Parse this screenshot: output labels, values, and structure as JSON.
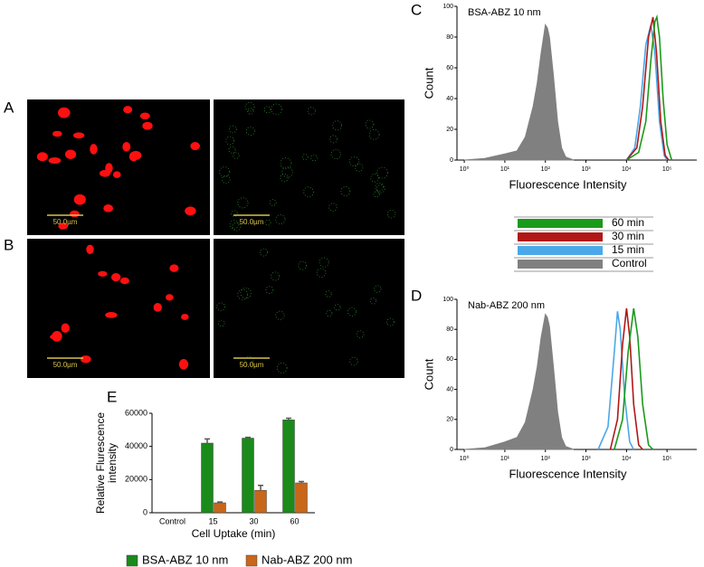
{
  "panel_labels": [
    "A",
    "B",
    "C",
    "D",
    "E"
  ],
  "images": [
    {
      "scale_bar": "50.0µm"
    },
    {
      "scale_bar": "50.0µm"
    },
    {
      "scale_bar": "50.0µm"
    },
    {
      "scale_bar": "50.0µm"
    }
  ],
  "chart_data": [
    {
      "type": "line",
      "annotation": "BSA-ABZ 10 nm",
      "xlabel": "Fluorescence Intensity",
      "ylabel": "Count",
      "xscale": "log",
      "xlim": [
        0.66,
        540000
      ],
      "ylim": [
        0,
        100
      ],
      "xticks": [
        {
          "value": 1,
          "label": "10⁰"
        },
        {
          "value": 10,
          "label": "10¹"
        },
        {
          "value": 100,
          "label": "10²"
        },
        {
          "value": 1000,
          "label": "10³"
        },
        {
          "value": 10000,
          "label": "10⁴"
        },
        {
          "value": 100000,
          "label": "10⁵"
        }
      ],
      "yticks": [
        0,
        20,
        40,
        60,
        80,
        100
      ],
      "series": [
        {
          "name": "60 min",
          "color": "#1a9a1a",
          "x": [
            10000,
            20000,
            30000,
            40000,
            50000,
            56000,
            65000,
            80000,
            100000,
            130000
          ],
          "values": [
            0,
            5,
            25,
            65,
            90,
            93,
            80,
            40,
            10,
            0
          ]
        },
        {
          "name": "30 min",
          "color": "#b01818",
          "x": [
            10000,
            18000,
            25000,
            35000,
            45000,
            55000,
            70000,
            90000,
            110000
          ],
          "values": [
            0,
            8,
            35,
            80,
            93,
            70,
            25,
            3,
            0
          ]
        },
        {
          "name": "15 min",
          "color": "#4aa8e8",
          "x": [
            10000,
            16000,
            22000,
            30000,
            40000,
            50000,
            65000,
            85000,
            100000
          ],
          "values": [
            0,
            8,
            35,
            75,
            88,
            70,
            25,
            3,
            0
          ]
        },
        {
          "name": "Control",
          "color": "#808080",
          "filled": true,
          "x": [
            1,
            3.16,
            10,
            20,
            32,
            50,
            63,
            79,
            100,
            112,
            126,
            158,
            200,
            251,
            316,
            500
          ],
          "values": [
            0,
            1,
            4,
            6,
            15,
            35,
            50,
            70,
            88,
            86,
            80,
            55,
            25,
            8,
            2,
            0
          ]
        }
      ]
    },
    {
      "type": "line",
      "annotation": "Nab-ABZ 200 nm",
      "xlabel": "Fluorescence Intensity",
      "ylabel": "Count",
      "xscale": "log",
      "xlim": [
        0.66,
        540000
      ],
      "ylim": [
        0,
        100
      ],
      "xticks": [
        {
          "value": 1,
          "label": "10⁰"
        },
        {
          "value": 10,
          "label": "10¹"
        },
        {
          "value": 100,
          "label": "10²"
        },
        {
          "value": 1000,
          "label": "10³"
        },
        {
          "value": 10000,
          "label": "10⁴"
        },
        {
          "value": 100000,
          "label": "10⁵"
        }
      ],
      "yticks": [
        0,
        20,
        40,
        60,
        80,
        100
      ],
      "series": [
        {
          "name": "60 min",
          "color": "#1a9a1a",
          "x": [
            5000,
            8000,
            11000,
            15000,
            19000,
            25000,
            35000,
            45000
          ],
          "values": [
            0,
            20,
            65,
            94,
            75,
            30,
            3,
            0
          ]
        },
        {
          "name": "30 min",
          "color": "#b01818",
          "x": [
            4000,
            6000,
            8000,
            10000,
            12000,
            15000,
            20000,
            25000
          ],
          "values": [
            0,
            20,
            70,
            94,
            75,
            30,
            3,
            0
          ]
        },
        {
          "name": "15 min",
          "color": "#4aa8e8",
          "x": [
            2000,
            3500,
            5000,
            6000,
            7000,
            9000,
            12000,
            15000
          ],
          "values": [
            0,
            15,
            65,
            92,
            80,
            35,
            5,
            0
          ]
        },
        {
          "name": "Control",
          "color": "#808080",
          "filled": true,
          "x": [
            1,
            3.16,
            10,
            20,
            32,
            50,
            63,
            79,
            100,
            112,
            126,
            158,
            200,
            251,
            316,
            500
          ],
          "values": [
            0,
            1,
            5,
            8,
            18,
            40,
            55,
            75,
            90,
            88,
            82,
            55,
            25,
            8,
            2,
            0
          ]
        }
      ]
    },
    {
      "type": "bar",
      "xlabel": "Cell Uptake (min)",
      "ylabel": [
        "Relative Flurescence",
        "intensity"
      ],
      "categories": [
        "Control",
        "15",
        "30",
        "60"
      ],
      "ylim": [
        0,
        60000
      ],
      "yticks": [
        0,
        20000,
        40000,
        60000
      ],
      "series": [
        {
          "name": "BSA-ABZ 10 nm",
          "color": "#1a8a1a",
          "values": [
            0,
            42000,
            45000,
            56000
          ],
          "errors": [
            0,
            2500,
            500,
            1000
          ]
        },
        {
          "name": "Nab-ABZ 200 nm",
          "color": "#c8661a",
          "values": [
            0,
            6000,
            13500,
            18000
          ],
          "errors": [
            0,
            500,
            3000,
            800
          ]
        }
      ]
    }
  ]
}
